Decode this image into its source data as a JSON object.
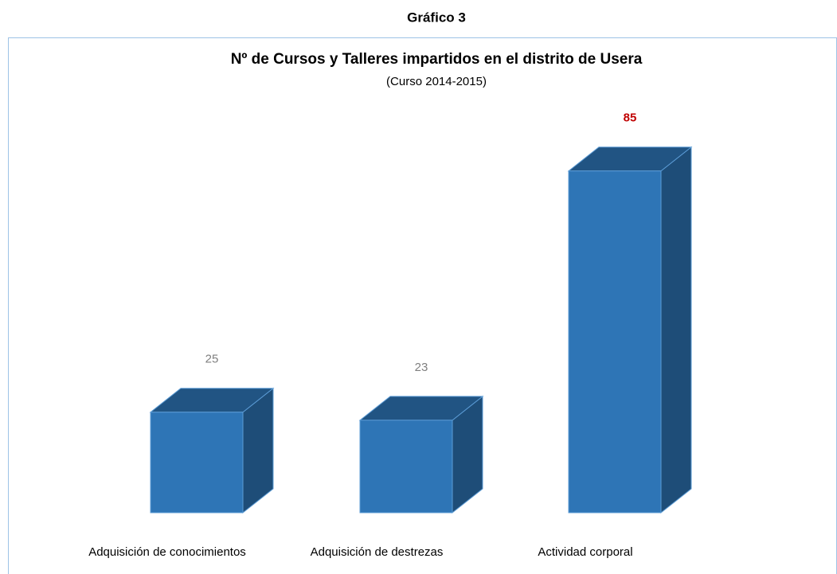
{
  "heading": "Gráfico 3",
  "chart_data": {
    "type": "bar3d",
    "title": "Nº de Cursos y Talleres impartidos en el distrito de Usera",
    "subtitle": "(Curso 2014-2015)",
    "categories": [
      "Adquisición de conocimientos",
      "Adquisición de destrezas",
      "Actividad corporal"
    ],
    "values": [
      25,
      23,
      85
    ],
    "color": "#2e75b6",
    "label_colors": [
      "#7f7f7f",
      "#7f7f7f",
      "#c00000"
    ],
    "label_bold": [
      false,
      false,
      true
    ]
  }
}
